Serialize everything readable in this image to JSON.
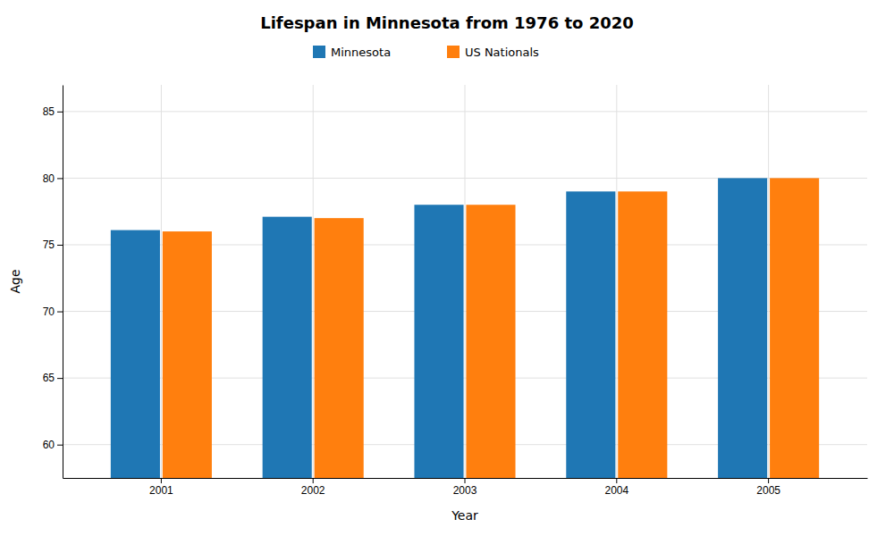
{
  "chart_data": {
    "type": "bar",
    "title": "Lifespan in Minnesota from 1976 to 2020",
    "x_label": "Year",
    "y_label": "Age",
    "categories": [
      "2001",
      "2002",
      "2003",
      "2004",
      "2005"
    ],
    "series": [
      {
        "name": "Minnesota",
        "values": [
          76.1,
          77.1,
          78.0,
          79.0,
          80.0
        ]
      },
      {
        "name": "US Nationals",
        "values": [
          76.0,
          77.0,
          78.0,
          79.0,
          80.0
        ]
      }
    ],
    "ylim": [
      57.5,
      87
    ],
    "yticks": [
      60,
      65,
      70,
      75,
      80,
      85
    ],
    "grid": true,
    "legend": "top"
  }
}
